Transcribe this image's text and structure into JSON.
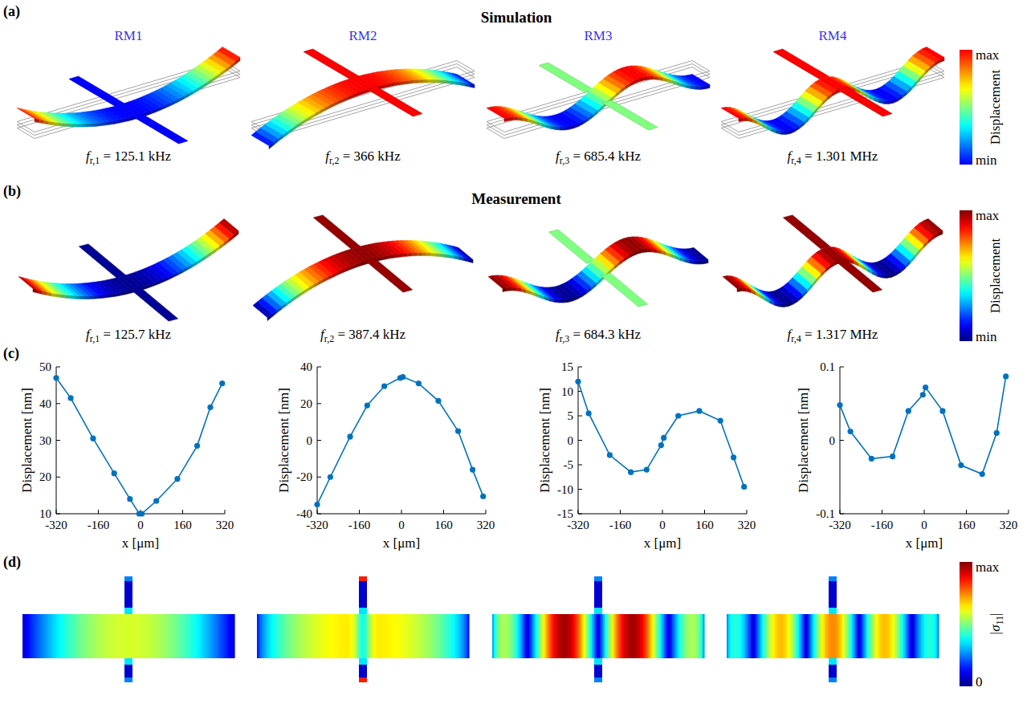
{
  "chart_data": [
    {
      "type": "line",
      "x": [
        -320,
        -265,
        -180,
        -100,
        -40,
        -5,
        5,
        60,
        140,
        215,
        265,
        310
      ],
      "values": [
        47,
        41.5,
        30.5,
        21,
        14,
        10,
        10,
        13.5,
        19.5,
        28.5,
        39,
        45.5
      ],
      "xlim": [
        -320,
        320
      ],
      "xticks": [
        -320,
        -160,
        0,
        160,
        320
      ],
      "ylim": [
        10,
        50
      ],
      "yticks": [
        10,
        20,
        30,
        40,
        50
      ],
      "x_label": "x [μm]",
      "y_label": "Displacement [nm]",
      "color": "#0072bd",
      "marker": "circle",
      "grid": false
    },
    {
      "type": "line",
      "x": [
        -320,
        -270,
        -195,
        -130,
        -65,
        -5,
        5,
        65,
        140,
        215,
        270,
        310
      ],
      "values": [
        -35,
        -20,
        2,
        19,
        29.5,
        34,
        34.5,
        31,
        21.5,
        5,
        -16,
        -30.5
      ],
      "xlim": [
        -320,
        320
      ],
      "xticks": [
        -320,
        -160,
        0,
        160,
        320
      ],
      "ylim": [
        -40,
        40
      ],
      "yticks": [
        -40,
        -20,
        0,
        20,
        40
      ],
      "x_label": "x [μm]",
      "y_label": "Displacement [nm]",
      "color": "#0072bd",
      "marker": "circle",
      "grid": false
    },
    {
      "type": "line",
      "x": [
        -320,
        -280,
        -200,
        -120,
        -60,
        -5,
        5,
        60,
        140,
        220,
        270,
        310
      ],
      "values": [
        12,
        5.5,
        -3,
        -6.5,
        -6,
        -1,
        0.5,
        5,
        6,
        4,
        -3.5,
        -9.5
      ],
      "xlim": [
        -320,
        320
      ],
      "xticks": [
        -320,
        -160,
        0,
        160,
        320
      ],
      "ylim": [
        -15,
        15
      ],
      "yticks": [
        -15,
        -10,
        -5,
        0,
        5,
        10,
        15
      ],
      "x_label": "x [μm]",
      "y_label": "Displacement [nm]",
      "color": "#0072bd",
      "marker": "circle",
      "grid": false
    },
    {
      "type": "line",
      "x": [
        -320,
        -280,
        -200,
        -120,
        -60,
        -5,
        5,
        70,
        140,
        220,
        275,
        310
      ],
      "values": [
        0.048,
        0.012,
        -0.025,
        -0.022,
        0.04,
        0.062,
        0.072,
        0.04,
        -0.034,
        -0.046,
        0.01,
        0.087
      ],
      "xlim": [
        -320,
        320
      ],
      "xticks": [
        -320,
        -160,
        0,
        160,
        320
      ],
      "ylim": [
        -0.1,
        0.1
      ],
      "yticks": [
        -0.1,
        0,
        0.1
      ],
      "x_label": "x [μm]",
      "y_label": "Displacement [nm]",
      "color": "#0072bd",
      "marker": "circle",
      "grid": false
    }
  ],
  "figure": {
    "panel_a": {
      "letter": "(a)",
      "title": "Simulation",
      "modes": [
        "RM1",
        "RM2",
        "RM3",
        "RM4"
      ],
      "frequencies": [
        {
          "symbol": "f",
          "sub": "r,1",
          "rest": "= 125.1 kHz"
        },
        {
          "symbol": "f",
          "sub": "r,2",
          "rest": "= 366 kHz"
        },
        {
          "symbol": "f",
          "sub": "r,3",
          "rest": "= 685.4 kHz"
        },
        {
          "symbol": "f",
          "sub": "r,4",
          "rest": "= 1.301 MHz"
        }
      ],
      "colorbar": {
        "max": "max",
        "min": "min",
        "label": "Displacement"
      }
    },
    "panel_b": {
      "letter": "(b)",
      "title": "Measurement",
      "frequencies": [
        {
          "symbol": "f",
          "sub": "r,1",
          "rest": "= 125.7 kHz"
        },
        {
          "symbol": "f",
          "sub": "r,2",
          "rest": "= 387.4 kHz"
        },
        {
          "symbol": "f",
          "sub": "r,3",
          "rest": "= 684.3 kHz"
        },
        {
          "symbol": "f",
          "sub": "r,4",
          "rest": "= 1.317 MHz"
        }
      ],
      "colorbar": {
        "max": "max",
        "min": "min",
        "label": "Displacement"
      }
    },
    "panel_c": {
      "letter": "(c)"
    },
    "panel_d": {
      "letter": "(d)",
      "colorbar": {
        "max": "max",
        "min": "0",
        "label": "|σ",
        "label_sub": "11",
        "label_end": "|"
      }
    }
  }
}
